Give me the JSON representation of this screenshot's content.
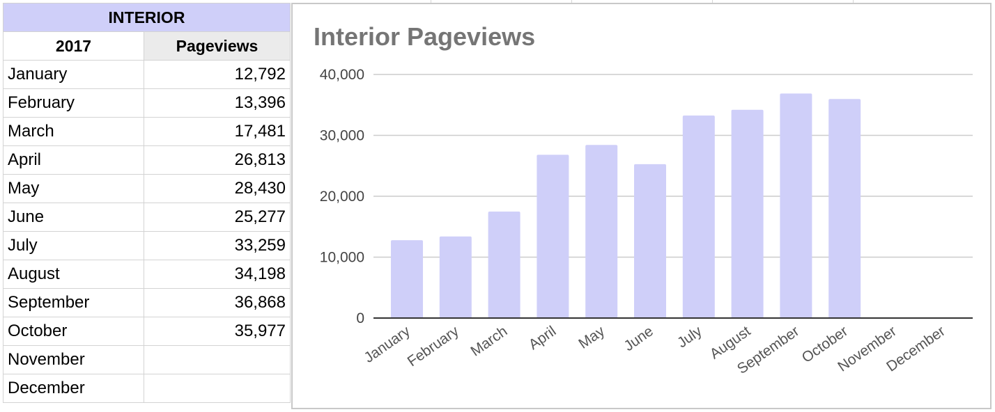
{
  "table": {
    "title": "INTERIOR",
    "year_header": "2017",
    "value_header": "Pageviews",
    "rows": [
      {
        "month": "January",
        "pageviews": "12,792"
      },
      {
        "month": "February",
        "pageviews": "13,396"
      },
      {
        "month": "March",
        "pageviews": "17,481"
      },
      {
        "month": "April",
        "pageviews": "26,813"
      },
      {
        "month": "May",
        "pageviews": "28,430"
      },
      {
        "month": "June",
        "pageviews": "25,277"
      },
      {
        "month": "July",
        "pageviews": "33,259"
      },
      {
        "month": "August",
        "pageviews": "34,198"
      },
      {
        "month": "September",
        "pageviews": "36,868"
      },
      {
        "month": "October",
        "pageviews": "35,977"
      },
      {
        "month": "November",
        "pageviews": ""
      },
      {
        "month": "December",
        "pageviews": ""
      }
    ]
  },
  "chart_data": {
    "type": "bar",
    "title": "Interior Pageviews",
    "xlabel": "",
    "ylabel": "",
    "categories": [
      "January",
      "February",
      "March",
      "April",
      "May",
      "June",
      "July",
      "August",
      "September",
      "October",
      "November",
      "December"
    ],
    "values": [
      12792,
      13396,
      17481,
      26813,
      28430,
      25277,
      33259,
      34198,
      36868,
      35977,
      null,
      null
    ],
    "ylim": [
      0,
      40000
    ],
    "yticks": [
      0,
      10000,
      20000,
      30000,
      40000
    ],
    "ytick_labels": [
      "0",
      "10,000",
      "20,000",
      "30,000",
      "40,000"
    ],
    "grid": true,
    "legend": "none",
    "bar_color": "#cfcff9"
  }
}
